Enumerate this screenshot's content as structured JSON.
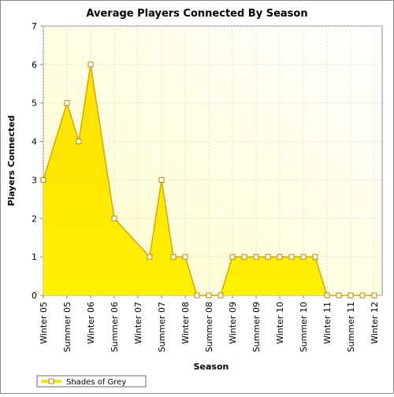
{
  "chart_data": {
    "type": "area",
    "title": "Average Players Connected By Season",
    "x_label": "Season",
    "y_label": "Players Connected",
    "categories": [
      "Winter 05",
      null,
      "Summer 05",
      null,
      "Winter 06",
      null,
      "Summer 06",
      null,
      "Winter 07",
      null,
      "Summer 07",
      null,
      "Winter 08",
      null,
      "Summer 08",
      null,
      "Winter 09",
      null,
      "Summer 09",
      null,
      "Winter 10",
      null,
      "Summer 10",
      null,
      "Winter 11",
      null,
      "Summer 11",
      null,
      "Winter 12"
    ],
    "series": [
      {
        "name": "Shades of Grey",
        "color": "#ffe600",
        "values": [
          3,
          null,
          5,
          4,
          6,
          null,
          2,
          null,
          null,
          1,
          3,
          1,
          1,
          0,
          0,
          0,
          1,
          1,
          1,
          1,
          1,
          1,
          1,
          1,
          0,
          0,
          0,
          0,
          0
        ]
      }
    ],
    "ylim": [
      0,
      7
    ],
    "yticks": [
      0,
      1,
      2,
      3,
      4,
      5,
      6,
      7
    ],
    "grid": true,
    "legend": "bottom-left"
  }
}
